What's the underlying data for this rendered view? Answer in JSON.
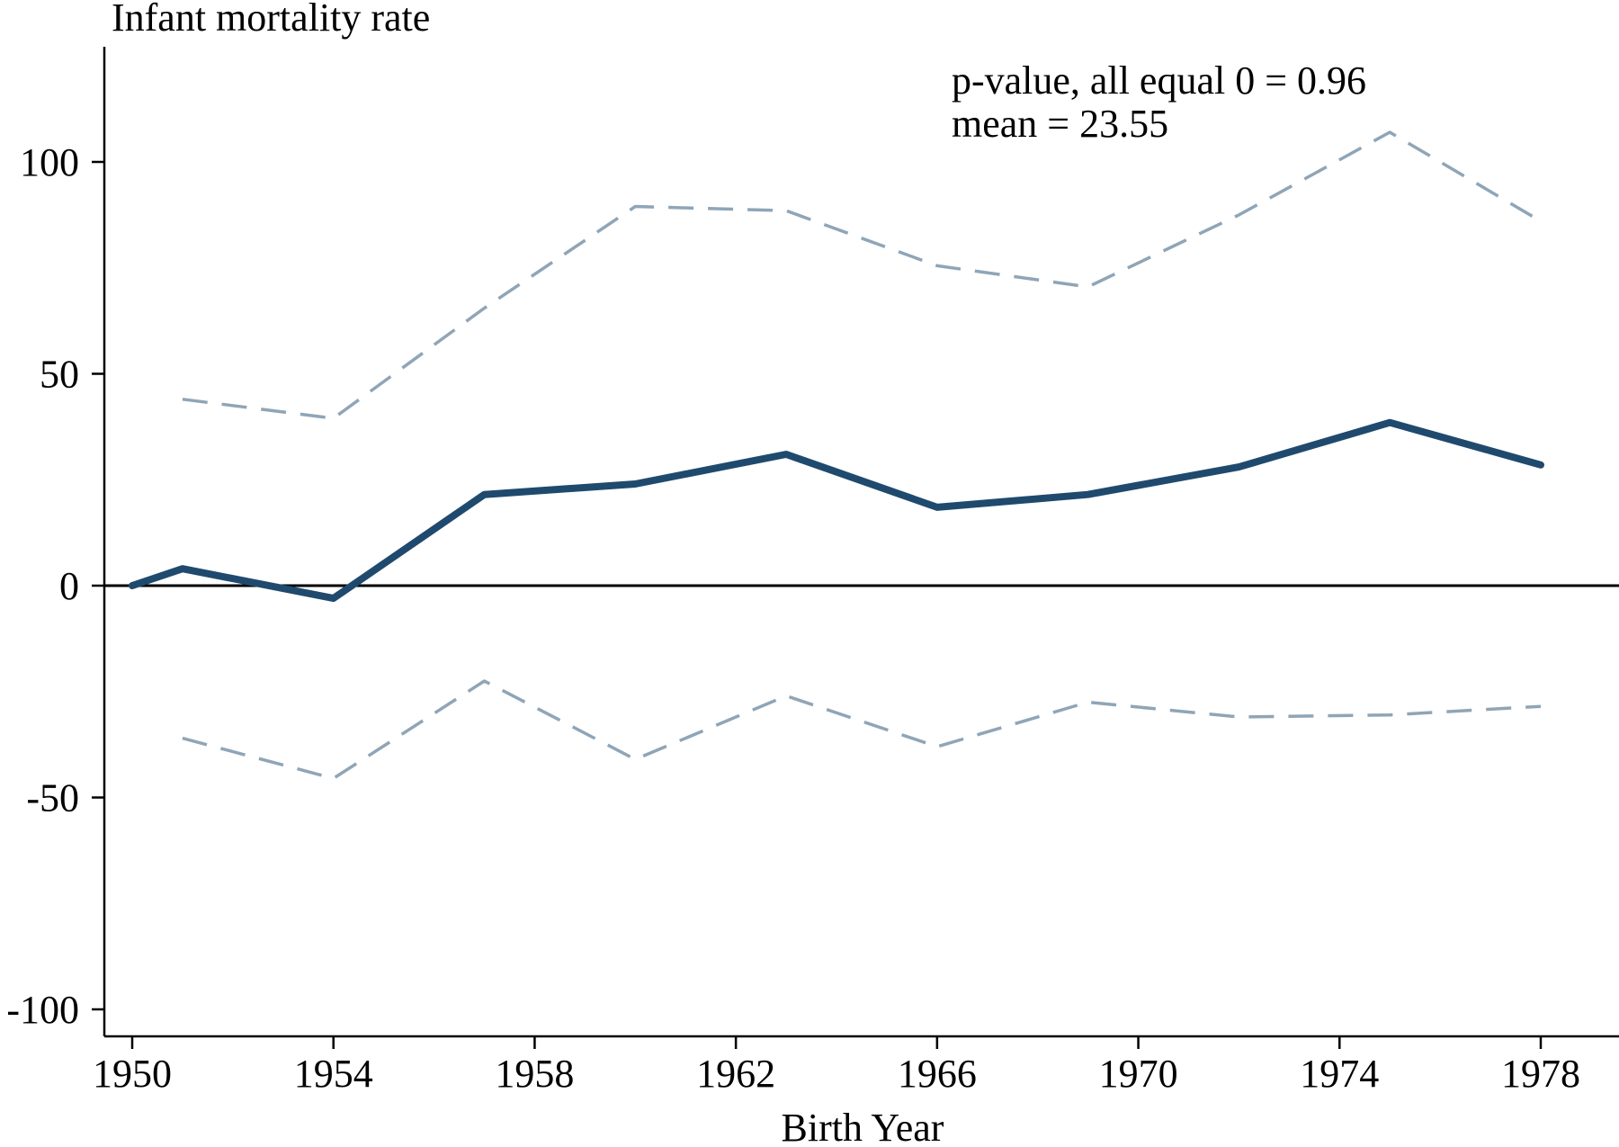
{
  "chart_data": {
    "type": "line",
    "title": "",
    "ylabel": "Infant mortality rate",
    "xlabel": "Birth Year",
    "xlim": [
      1949.4,
      1979.3
    ],
    "ylim": [
      -106.5,
      126.5
    ],
    "x_ticks": [
      "1950",
      "1954",
      "1958",
      "1962",
      "1966",
      "1970",
      "1974",
      "1978"
    ],
    "y_ticks": [
      "-100",
      "-50",
      "0",
      "50",
      "100"
    ],
    "reference_line": {
      "y": 0,
      "color": "#000000"
    },
    "annotations": [
      "p-value, all equal 0 = 0.96",
      "mean = 23.55"
    ],
    "grid": false,
    "series": [
      {
        "name": "estimate",
        "style": "solid",
        "color": "#1f4a6e",
        "x": [
          1950,
          1951,
          1954,
          1957,
          1960,
          1963,
          1966,
          1969,
          1972,
          1975,
          1978
        ],
        "values": [
          0,
          4,
          -3,
          21.5,
          24,
          31,
          18.5,
          21.5,
          28,
          38.5,
          28.5
        ]
      },
      {
        "name": "upper-ci",
        "style": "dashed",
        "color": "#8fa5b7",
        "x": [
          1951,
          1954,
          1957,
          1960,
          1963,
          1966,
          1969,
          1972,
          1975,
          1978
        ],
        "values": [
          44,
          39.5,
          65.5,
          89.5,
          88.5,
          75.5,
          70.5,
          87.5,
          107,
          86
        ]
      },
      {
        "name": "lower-ci",
        "style": "dashed",
        "color": "#8fa5b7",
        "x": [
          1951,
          1954,
          1957,
          1960,
          1963,
          1966,
          1969,
          1972,
          1975,
          1978
        ],
        "values": [
          -36,
          -45.5,
          -22.5,
          -41,
          -26,
          -38,
          -27.5,
          -31,
          -30.5,
          -28.5
        ]
      }
    ]
  }
}
